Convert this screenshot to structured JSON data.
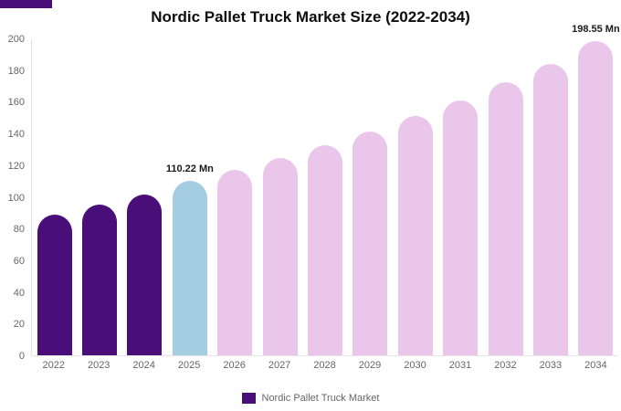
{
  "page": {
    "title": "Nordic Pallet Truck Market Size (2022-2034)"
  },
  "legend": {
    "label": "Nordic Pallet Truck Market"
  },
  "decor": {
    "top_strip_color": "#4a0e78"
  },
  "chart_data": {
    "type": "bar",
    "title": "Nordic Pallet Truck Market Size (2022-2034)",
    "series_name": "Nordic Pallet Truck Market",
    "unit": "Mn",
    "categories": [
      "2022",
      "2023",
      "2024",
      "2025",
      "2026",
      "2027",
      "2028",
      "2029",
      "2030",
      "2031",
      "2032",
      "2033",
      "2034"
    ],
    "values": [
      88.5,
      95,
      101.5,
      110.22,
      117,
      124.5,
      132.5,
      141.5,
      151,
      161,
      172.5,
      184,
      198.55
    ],
    "ylim": [
      0,
      200
    ],
    "ytick_step": 20,
    "grid": false,
    "legend_position": "bottom",
    "segment_colors": {
      "historical": "#4a0e78",
      "highlight": "#a5cde2",
      "forecast": "#eac7ea"
    },
    "color_keys": [
      "historical",
      "historical",
      "historical",
      "highlight",
      "forecast",
      "forecast",
      "forecast",
      "forecast",
      "forecast",
      "forecast",
      "forecast",
      "forecast",
      "forecast"
    ],
    "annotations": [
      {
        "category": "2025",
        "text": "110.22 Mn"
      },
      {
        "category": "2034",
        "text": "198.55 Mn"
      }
    ]
  }
}
